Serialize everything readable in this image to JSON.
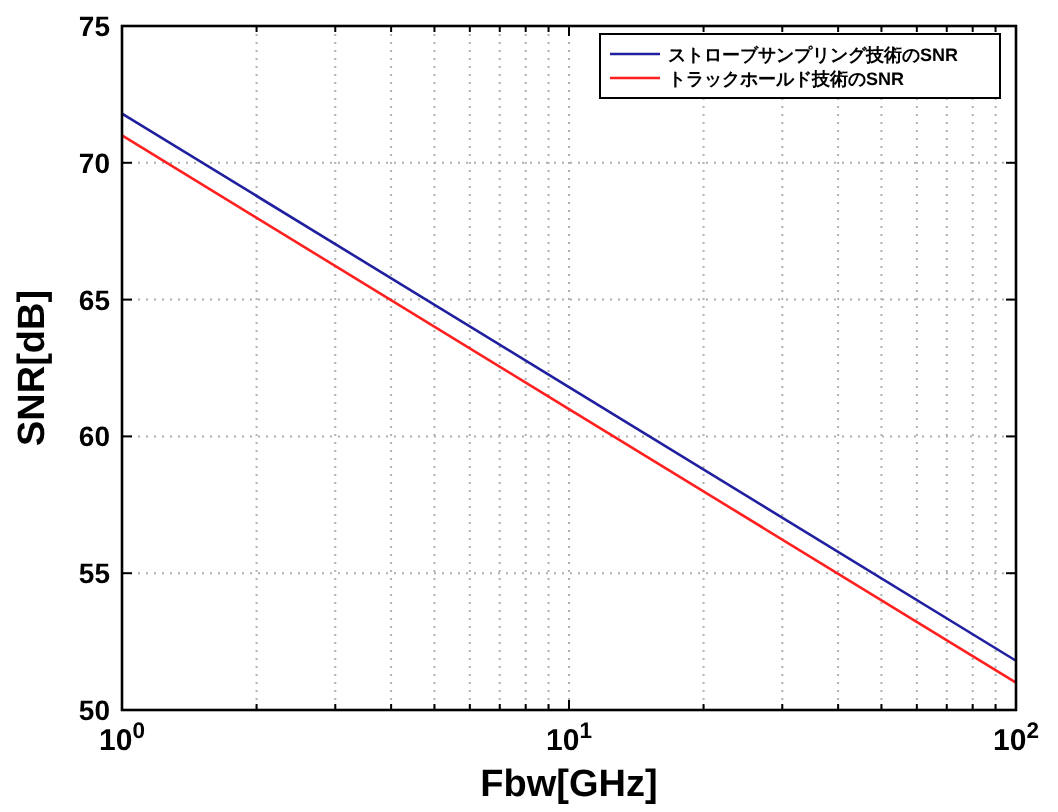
{
  "chart_data": {
    "type": "line",
    "xlabel": "Fbw[GHz]",
    "ylabel": "SNR[dB]",
    "log": "x",
    "xlim": [
      1,
      100
    ],
    "xticks": [
      {
        "value": 1,
        "label": "10$^{0}$"
      },
      {
        "value": 10,
        "label": "10$^{1}$"
      },
      {
        "value": 100,
        "label": "10$^{2}$"
      }
    ],
    "ylim": [
      50,
      75
    ],
    "yticks": [
      50,
      55,
      60,
      65,
      70,
      75
    ],
    "grid": true,
    "legend": "top right",
    "line_style": "solid",
    "marker": "none",
    "x": [
      1,
      10,
      100
    ],
    "series": [
      {
        "name": "ストローブサンプリング技術のSNR",
        "color": "#1f1f9f",
        "values": [
          71.8,
          61.8,
          51.8
        ]
      },
      {
        "name": "トラックホールド技術のSNR",
        "color": "#ff1f1f",
        "values": [
          71.0,
          61.0,
          51.0
        ]
      }
    ]
  }
}
